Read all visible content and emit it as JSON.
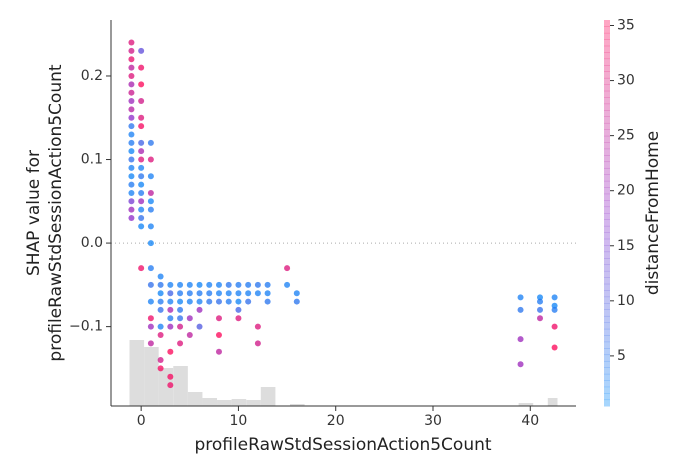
{
  "chart_data": {
    "type": "scatter",
    "xlabel": "profileRawStdSessionAction5Count",
    "ylabel": [
      "SHAP value for",
      "profileRawStdSessionAction5Count"
    ],
    "colorbar_label": "distanceFromHome",
    "xlim": [
      -3.1,
      44.7
    ],
    "ylim": [
      -0.195,
      0.267
    ],
    "xticks": [
      0,
      10,
      20,
      30,
      40
    ],
    "yticks": [
      {
        "value": -0.1,
        "label": "−0.1"
      },
      {
        "value": 0,
        "label": "0.0"
      },
      0.1,
      0.2
    ],
    "clim": [
      0.45,
      35.5
    ],
    "cticks": [
      5,
      10,
      15,
      20,
      25,
      30,
      35
    ],
    "colors": [
      "#008bfb",
      "#8c28c8",
      "#ff0052"
    ],
    "zero_line": true,
    "x": [
      -1,
      -1,
      -1,
      -1,
      -1,
      -1,
      -1,
      -1,
      -1,
      -1,
      -1,
      -1,
      -1,
      -1,
      -1,
      -1,
      -1,
      -1,
      -1,
      -1,
      -1,
      -1,
      0,
      0,
      0,
      0,
      0,
      0,
      0,
      0,
      0,
      0,
      0,
      0,
      0,
      0,
      0,
      0,
      0,
      0,
      1,
      1,
      1,
      1,
      1,
      1,
      1,
      1,
      1,
      1,
      1,
      1,
      1,
      1,
      2,
      2,
      2,
      2,
      2,
      2,
      2,
      2,
      2,
      3,
      3,
      3,
      3,
      3,
      3,
      3,
      3,
      3,
      4,
      4,
      4,
      4,
      4,
      4,
      4,
      5,
      5,
      5,
      5,
      5,
      6,
      6,
      6,
      6,
      6,
      7,
      7,
      7,
      8,
      8,
      8,
      8,
      8,
      8,
      9,
      9,
      9,
      10,
      10,
      10,
      10,
      10,
      11,
      11,
      11,
      12,
      12,
      12,
      12,
      13,
      13,
      13,
      15,
      15,
      16,
      16,
      39,
      39,
      39,
      39,
      41,
      41,
      41,
      41,
      42.5,
      42.5,
      42.5,
      42.5,
      42.5
    ],
    "values": [
      0.24,
      0.23,
      0.22,
      0.21,
      0.2,
      0.19,
      0.18,
      0.17,
      0.16,
      0.15,
      0.14,
      0.13,
      0.12,
      0.11,
      0.1,
      0.09,
      0.08,
      0.07,
      0.06,
      0.05,
      0.04,
      0.03,
      0.23,
      0.21,
      0.19,
      0.17,
      0.15,
      0.14,
      0.12,
      0.11,
      0.1,
      0.09,
      0.08,
      0.07,
      0.06,
      0.05,
      0.04,
      0.03,
      0.02,
      -0.03,
      0.12,
      0.1,
      0.08,
      0.06,
      0.05,
      0.04,
      0.02,
      0.0,
      -0.03,
      -0.05,
      -0.07,
      -0.09,
      -0.1,
      -0.12,
      -0.04,
      -0.05,
      -0.06,
      -0.07,
      -0.08,
      -0.1,
      -0.11,
      -0.15,
      -0.14,
      -0.05,
      -0.06,
      -0.07,
      -0.08,
      -0.09,
      -0.13,
      -0.16,
      -0.17,
      -0.1,
      -0.05,
      -0.06,
      -0.07,
      -0.08,
      -0.09,
      -0.1,
      -0.12,
      -0.05,
      -0.06,
      -0.07,
      -0.09,
      -0.11,
      -0.05,
      -0.06,
      -0.07,
      -0.08,
      -0.1,
      -0.05,
      -0.06,
      -0.07,
      -0.05,
      -0.06,
      -0.07,
      -0.09,
      -0.11,
      -0.13,
      -0.06,
      -0.05,
      -0.07,
      -0.06,
      -0.05,
      -0.07,
      -0.08,
      -0.09,
      -0.05,
      -0.06,
      -0.07,
      -0.06,
      -0.05,
      -0.1,
      -0.12,
      -0.06,
      -0.05,
      -0.07,
      -0.05,
      -0.03,
      -0.06,
      -0.07,
      -0.065,
      -0.08,
      -0.115,
      -0.145,
      -0.065,
      -0.07,
      -0.08,
      -0.09,
      -0.065,
      -0.075,
      -0.08,
      -0.1,
      -0.125
    ],
    "color_values": [
      30,
      28,
      32,
      25,
      30,
      22,
      27,
      20,
      24,
      18,
      5,
      3,
      4,
      2,
      6,
      3,
      2,
      4,
      3,
      15,
      20,
      18,
      12,
      33,
      35,
      28,
      30,
      34,
      8,
      22,
      30,
      3,
      5,
      2,
      4,
      20,
      3,
      6,
      2,
      33,
      5,
      30,
      3,
      25,
      2,
      4,
      3,
      2,
      4,
      6,
      3,
      33,
      20,
      25,
      3,
      5,
      2,
      4,
      6,
      3,
      30,
      34,
      28,
      3,
      8,
      3,
      22,
      4,
      35,
      34,
      33,
      20,
      3,
      4,
      2,
      5,
      6,
      28,
      30,
      3,
      4,
      3,
      20,
      25,
      2,
      4,
      3,
      20,
      10,
      3,
      4,
      5,
      3,
      3,
      6,
      30,
      35,
      25,
      3,
      5,
      4,
      3,
      4,
      2,
      8,
      30,
      4,
      3,
      6,
      3,
      5,
      30,
      28,
      3,
      4,
      5,
      3,
      30,
      3,
      5,
      3,
      5,
      20,
      20,
      2,
      4,
      6,
      25,
      3,
      2,
      4,
      33,
      35
    ],
    "histogram": {
      "bins": [
        -1.2,
        0.3,
        1.8,
        3.3,
        4.8,
        6.3,
        7.8,
        9.3,
        10.8,
        12.3,
        13.8,
        15.3,
        16.8,
        38.8,
        40.3,
        41.8,
        42.8
      ],
      "counts": [
        66,
        59,
        38,
        40,
        14,
        8,
        6,
        7,
        6,
        19,
        0,
        2,
        0,
        3,
        0,
        8
      ]
    }
  }
}
